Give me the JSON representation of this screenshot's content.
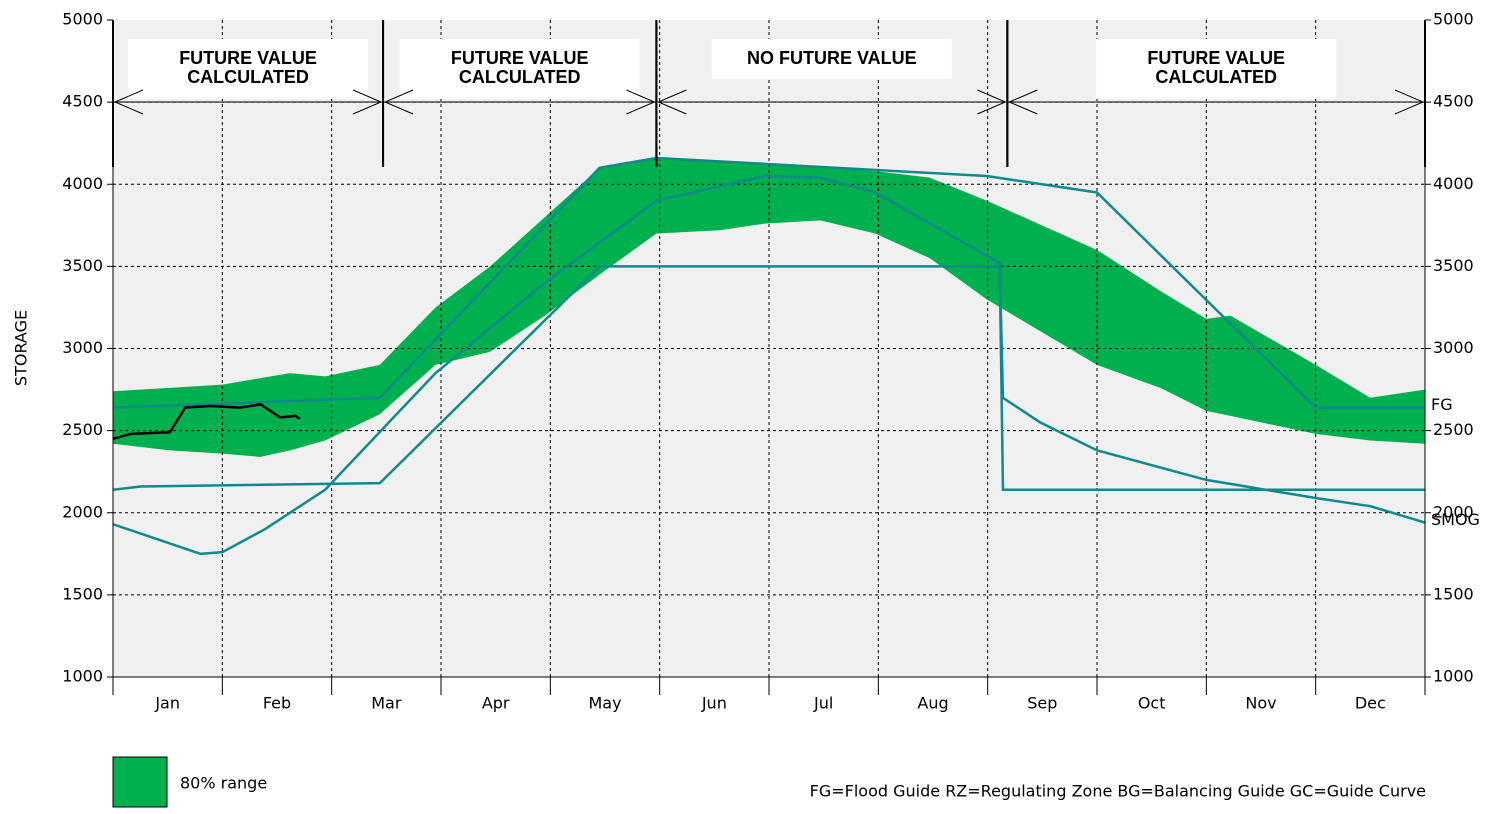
{
  "chart_data": {
    "type": "line",
    "y_label": "STORAGE",
    "categories": [
      "Jan",
      "Feb",
      "Mar",
      "Apr",
      "May",
      "Jun",
      "Jul",
      "Aug",
      "Sep",
      "Oct",
      "Nov",
      "Dec"
    ],
    "ylim": [
      1000,
      5000
    ],
    "yticks": [
      1000,
      1500,
      2000,
      2500,
      3000,
      3500,
      4000,
      4500,
      5000
    ],
    "y2lim": [
      1000,
      5000
    ],
    "y2ticks": [
      1000,
      1500,
      2000,
      2500,
      3000,
      3500,
      4000,
      4500,
      5000
    ],
    "grid": true,
    "band": {
      "name": "80% range",
      "color": "#00b04f",
      "x": [
        0,
        0.52,
        1.0,
        1.35,
        1.62,
        1.94,
        2.44,
        2.95,
        3.45,
        3.95,
        4.45,
        4.97,
        5.55,
        5.96,
        6.47,
        6.97,
        7.47,
        7.99,
        9.0,
        9.58,
        10.0,
        10.22,
        11.0,
        11.5,
        12
      ],
      "upper": [
        2740,
        2760,
        2780,
        2820,
        2850,
        2830,
        2900,
        3250,
        3500,
        3800,
        4100,
        4160,
        4140,
        4120,
        4100,
        4080,
        4040,
        3900,
        3600,
        3350,
        3180,
        3200,
        2900,
        2700,
        2750
      ],
      "lower": [
        2420,
        2380,
        2360,
        2340,
        2380,
        2440,
        2600,
        2900,
        2980,
        3200,
        3450,
        3700,
        3720,
        3760,
        3780,
        3700,
        3550,
        3300,
        2900,
        2760,
        2620,
        2590,
        2480,
        2440,
        2420
      ]
    },
    "series": [
      {
        "name": "FG",
        "color": "#108a8a",
        "x": [
          0,
          2.44,
          4.45,
          4.97,
          7.99,
          9.0,
          11.0,
          12
        ],
        "values": [
          2640,
          2700,
          4100,
          4160,
          4050,
          3950,
          2640,
          2640
        ]
      },
      {
        "color": "#108a8a",
        "x": [
          0,
          0.25,
          2.44,
          4.45,
          8.11,
          8.14,
          12
        ],
        "values": [
          2140,
          2160,
          2180,
          3500,
          3500,
          2140,
          2140
        ]
      },
      {
        "name": "SMOG",
        "color": "#108a8a",
        "x": [
          0,
          0.8,
          1.0,
          1.39,
          1.94,
          2.95,
          3.95,
          4.97,
          5.96,
          6.47,
          6.97,
          8.11,
          8.14,
          8.48,
          9.0,
          10.0,
          11.0,
          11.5,
          12
        ],
        "values": [
          1930,
          1750,
          1760,
          1900,
          2140,
          2850,
          3400,
          3900,
          4050,
          4040,
          3950,
          3520,
          2700,
          2550,
          2380,
          2200,
          2090,
          2040,
          1940
        ]
      },
      {
        "color": "#000000",
        "x": [
          0,
          0.16,
          0.52,
          0.66,
          0.89,
          1.16,
          1.35,
          1.53,
          1.67,
          1.71
        ],
        "values": [
          2450,
          2480,
          2490,
          2640,
          2650,
          2640,
          2660,
          2580,
          2590,
          2570
        ]
      }
    ],
    "periods": [
      {
        "label": [
          "FUTURE VALUE",
          "CALCULATED"
        ],
        "start": 0,
        "end": 2.47
      },
      {
        "label": [
          "FUTURE VALUE",
          "CALCULATED"
        ],
        "start": 2.47,
        "end": 4.97
      },
      {
        "label": [
          "NO FUTURE VALUE"
        ],
        "start": 4.97,
        "end": 8.18
      },
      {
        "label": [
          "FUTURE VALUE",
          "CALCULATED"
        ],
        "start": 8.18,
        "end": 12
      }
    ],
    "footnote": "FG=Flood Guide   RZ=Regulating Zone  BG=Balancing Guide  GC=Guide Curve"
  }
}
